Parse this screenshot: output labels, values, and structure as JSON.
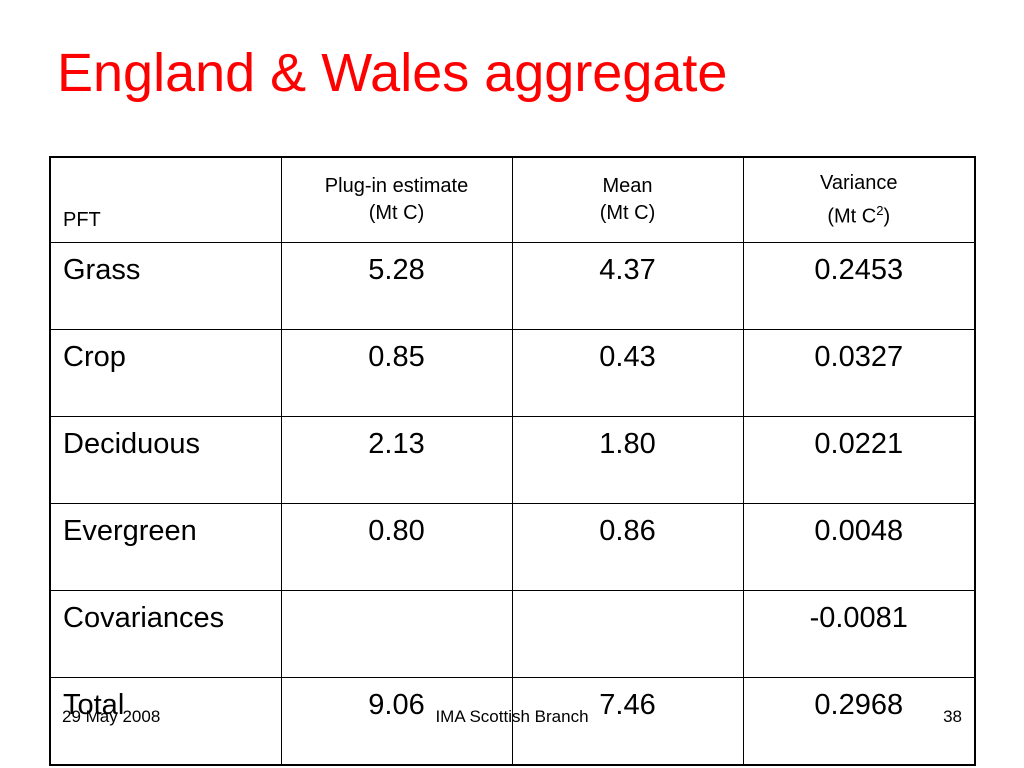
{
  "slide": {
    "title": "England & Wales aggregate",
    "title_color": "#ff0000"
  },
  "table": {
    "headers": [
      {
        "line1": "",
        "line2": "PFT"
      },
      {
        "line1": "Plug-in estimate",
        "line2": "(Mt C)"
      },
      {
        "line1": "Mean",
        "line2": "(Mt C)"
      },
      {
        "line1": "Variance",
        "line2_prefix": "(Mt C",
        "line2_sup": "2",
        "line2_suffix": ")"
      }
    ],
    "rows": [
      {
        "pft": "Grass",
        "plugin": "5.28",
        "mean": "4.37",
        "variance": "0.2453"
      },
      {
        "pft": "Crop",
        "plugin": "0.85",
        "mean": "0.43",
        "variance": "0.0327"
      },
      {
        "pft": "Deciduous",
        "plugin": "2.13",
        "mean": "1.80",
        "variance": "0.0221"
      },
      {
        "pft": "Evergreen",
        "plugin": "0.80",
        "mean": "0.86",
        "variance": "0.0048"
      },
      {
        "pft": "Covariances",
        "plugin": "",
        "mean": "",
        "variance": "-0.0081"
      },
      {
        "pft": "Total",
        "plugin": "9.06",
        "mean": "7.46",
        "variance": "0.2968"
      }
    ]
  },
  "footer": {
    "date": "29 May 2008",
    "organization": "IMA Scottish Branch",
    "page_number": "38"
  }
}
